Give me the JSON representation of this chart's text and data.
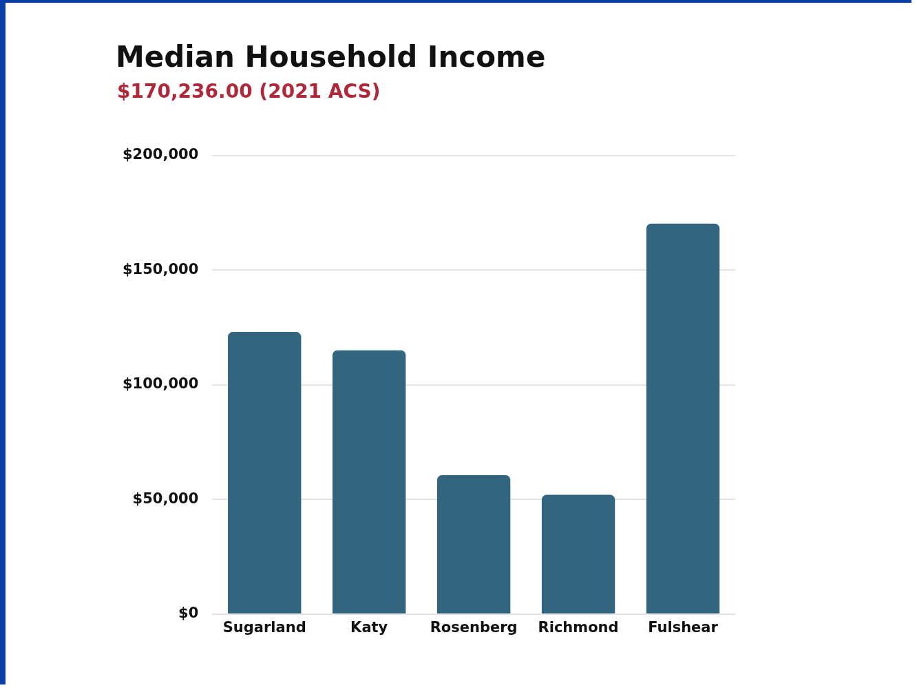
{
  "chart_data": {
    "type": "bar",
    "title": "Median Household Income",
    "subtitle": "$170,236.00 (2021 ACS)",
    "categories": [
      "Sugarland",
      "Katy",
      "Rosenberg",
      "Richmond",
      "Fulshear"
    ],
    "values": [
      123000,
      115000,
      60600,
      52000,
      170236
    ],
    "color": "#34657f",
    "ylim": [
      0,
      200000
    ],
    "yticks": [
      {
        "value": 0,
        "label": "$0"
      },
      {
        "value": 50000,
        "label": "$50,000"
      },
      {
        "value": 100000,
        "label": "$100,000"
      },
      {
        "value": 150000,
        "label": "$150,000"
      },
      {
        "value": 200000,
        "label": "$200,000"
      }
    ],
    "grid": "y",
    "legend": false
  }
}
